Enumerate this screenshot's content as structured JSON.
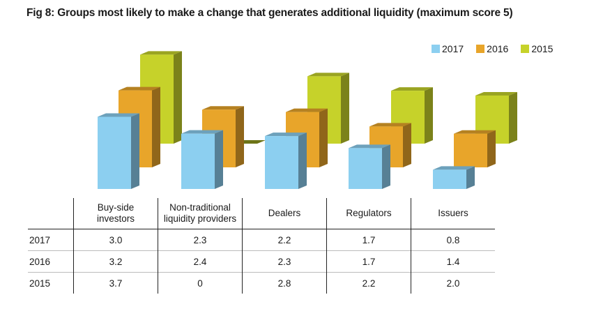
{
  "title": "Fig 8: Groups most likely to make a change that generates additional liquidity (maximum score 5)",
  "legend": [
    {
      "label": "2017",
      "color": "#8ccff0"
    },
    {
      "label": "2016",
      "color": "#e8a52a"
    },
    {
      "label": "2015",
      "color": "#c6d22a"
    }
  ],
  "chart_data": {
    "type": "bar",
    "title": "Fig 8: Groups most likely to make a change that generates additional liquidity (maximum score 5)",
    "categories": [
      "Buy-side investors",
      "Non-traditional liquidity providers",
      "Dealers",
      "Regulators",
      "Issuers"
    ],
    "category_lines": [
      [
        "Buy-side",
        "investors"
      ],
      [
        "Non-traditional",
        "liquidity providers"
      ],
      [
        "Dealers"
      ],
      [
        "Regulators"
      ],
      [
        "Issuers"
      ]
    ],
    "series": [
      {
        "name": "2017",
        "values": [
          "3.0",
          "2.3",
          "2.2",
          "1.7",
          "0.8"
        ],
        "color": "#8ccff0"
      },
      {
        "name": "2016",
        "values": [
          "3.2",
          "2.4",
          "2.3",
          "1.7",
          "1.4"
        ],
        "color": "#e8a52a"
      },
      {
        "name": "2015",
        "values": [
          "3.7",
          "0",
          "2.8",
          "2.2",
          "2.0"
        ],
        "color": "#c6d22a"
      }
    ],
    "ylim": [
      0,
      5
    ],
    "legend_position": "top-right",
    "grid": false
  }
}
